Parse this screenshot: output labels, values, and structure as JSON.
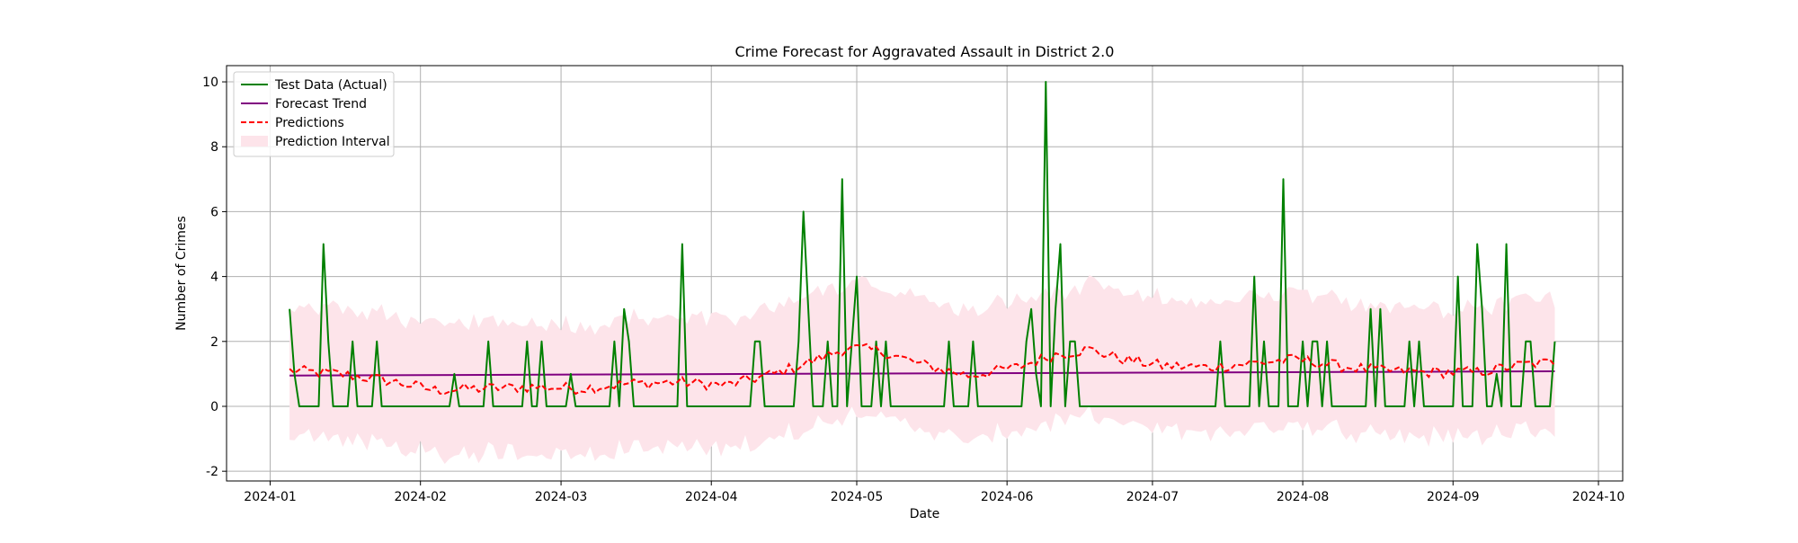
{
  "chart_data": {
    "type": "line",
    "title": "Crime Forecast for Aggravated Assault in District 2.0",
    "xlabel": "Date",
    "ylabel": "Number of Crimes",
    "ylim": [
      -2.3,
      10.5
    ],
    "xlim": [
      "2023-12-23",
      "2024-10-06"
    ],
    "xticks": [
      "2024-01",
      "2024-02",
      "2024-03",
      "2024-04",
      "2024-05",
      "2024-06",
      "2024-07",
      "2024-08",
      "2024-09",
      "2024-10"
    ],
    "yticks": [
      -2,
      0,
      2,
      4,
      6,
      8,
      10
    ],
    "grid": true,
    "legend_position": "top-left",
    "x_start": "2024-01-05",
    "days": 261,
    "interval_half_width": 2.0,
    "series": [
      {
        "name": "Test Data (Actual)",
        "color": "#008000",
        "style": "solid",
        "events": [
          [
            0,
            3
          ],
          [
            1,
            1
          ],
          [
            2,
            0
          ],
          [
            6,
            0
          ],
          [
            7,
            5
          ],
          [
            8,
            2
          ],
          [
            9,
            0
          ],
          [
            12,
            0
          ],
          [
            13,
            2
          ],
          [
            14,
            0
          ],
          [
            17,
            0
          ],
          [
            18,
            2
          ],
          [
            19,
            0
          ],
          [
            33,
            0
          ],
          [
            34,
            1
          ],
          [
            35,
            0
          ],
          [
            40,
            0
          ],
          [
            41,
            2
          ],
          [
            42,
            0
          ],
          [
            48,
            0
          ],
          [
            49,
            2
          ],
          [
            50,
            0
          ],
          [
            51,
            0
          ],
          [
            52,
            2
          ],
          [
            53,
            0
          ],
          [
            57,
            0
          ],
          [
            58,
            1
          ],
          [
            59,
            0
          ],
          [
            66,
            0
          ],
          [
            67,
            2
          ],
          [
            68,
            0
          ],
          [
            69,
            3
          ],
          [
            70,
            2
          ],
          [
            71,
            0
          ],
          [
            80,
            0
          ],
          [
            81,
            5
          ],
          [
            82,
            0
          ],
          [
            95,
            0
          ],
          [
            96,
            2
          ],
          [
            97,
            2
          ],
          [
            98,
            0
          ],
          [
            104,
            0
          ],
          [
            105,
            2
          ],
          [
            106,
            6
          ],
          [
            107,
            3
          ],
          [
            108,
            0
          ],
          [
            110,
            0
          ],
          [
            111,
            2
          ],
          [
            112,
            0
          ],
          [
            113,
            0
          ],
          [
            114,
            7
          ],
          [
            115,
            0
          ],
          [
            116,
            2
          ],
          [
            117,
            4
          ],
          [
            118,
            0
          ],
          [
            120,
            0
          ],
          [
            121,
            2
          ],
          [
            122,
            0
          ],
          [
            123,
            2
          ],
          [
            124,
            0
          ],
          [
            135,
            0
          ],
          [
            136,
            2
          ],
          [
            137,
            0
          ],
          [
            140,
            0
          ],
          [
            141,
            2
          ],
          [
            142,
            0
          ],
          [
            151,
            0
          ],
          [
            152,
            2
          ],
          [
            153,
            3
          ],
          [
            154,
            1
          ],
          [
            155,
            0
          ],
          [
            156,
            10
          ],
          [
            157,
            0
          ],
          [
            158,
            3
          ],
          [
            159,
            5
          ],
          [
            160,
            0
          ],
          [
            161,
            2
          ],
          [
            162,
            2
          ],
          [
            163,
            0
          ],
          [
            191,
            0
          ],
          [
            192,
            2
          ],
          [
            193,
            0
          ],
          [
            198,
            0
          ],
          [
            199,
            4
          ],
          [
            200,
            0
          ],
          [
            201,
            2
          ],
          [
            202,
            0
          ],
          [
            204,
            0
          ],
          [
            205,
            7
          ],
          [
            206,
            0
          ],
          [
            208,
            0
          ],
          [
            209,
            2
          ],
          [
            210,
            0
          ],
          [
            211,
            2
          ],
          [
            212,
            2
          ],
          [
            213,
            0
          ],
          [
            214,
            2
          ],
          [
            215,
            0
          ],
          [
            222,
            0
          ],
          [
            223,
            3
          ],
          [
            224,
            0
          ],
          [
            225,
            3
          ],
          [
            226,
            0
          ],
          [
            230,
            0
          ],
          [
            231,
            2
          ],
          [
            232,
            0
          ],
          [
            233,
            2
          ],
          [
            234,
            0
          ],
          [
            240,
            0
          ],
          [
            241,
            4
          ],
          [
            242,
            0
          ],
          [
            244,
            0
          ],
          [
            245,
            5
          ],
          [
            246,
            3
          ],
          [
            247,
            0
          ],
          [
            248,
            0
          ],
          [
            249,
            1
          ],
          [
            250,
            0
          ],
          [
            251,
            5
          ],
          [
            252,
            0
          ],
          [
            254,
            0
          ],
          [
            255,
            2
          ],
          [
            256,
            2
          ],
          [
            257,
            0
          ],
          [
            260,
            0
          ],
          [
            261,
            2
          ]
        ]
      },
      {
        "name": "Forecast Trend",
        "color": "#800080",
        "style": "solid",
        "start": 0.95,
        "end": 1.08
      },
      {
        "name": "Predictions",
        "color": "#ff0000",
        "style": "dashed",
        "knots": [
          [
            0,
            1.1
          ],
          [
            10,
            1.0
          ],
          [
            20,
            0.8
          ],
          [
            30,
            0.5
          ],
          [
            40,
            0.55
          ],
          [
            50,
            0.6
          ],
          [
            60,
            0.55
          ],
          [
            70,
            0.7
          ],
          [
            80,
            0.75
          ],
          [
            90,
            0.65
          ],
          [
            100,
            1.0
          ],
          [
            108,
            1.4
          ],
          [
            115,
            1.8
          ],
          [
            122,
            1.7
          ],
          [
            130,
            1.3
          ],
          [
            140,
            0.95
          ],
          [
            150,
            1.2
          ],
          [
            158,
            1.6
          ],
          [
            165,
            1.75
          ],
          [
            172,
            1.45
          ],
          [
            180,
            1.25
          ],
          [
            190,
            1.2
          ],
          [
            200,
            1.35
          ],
          [
            208,
            1.45
          ],
          [
            216,
            1.25
          ],
          [
            225,
            1.1
          ],
          [
            235,
            1.05
          ],
          [
            245,
            1.05
          ],
          [
            255,
            1.3
          ],
          [
            261,
            1.35
          ]
        ]
      },
      {
        "name": "Prediction Interval",
        "color": "#fde4ea",
        "style": "band"
      }
    ]
  }
}
